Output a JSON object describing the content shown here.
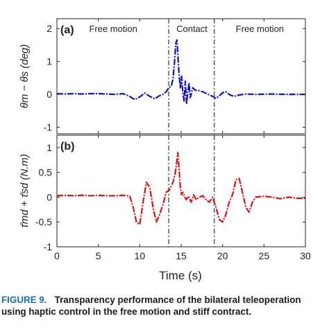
{
  "chart_data": [
    {
      "type": "line",
      "panel_label": "(a)",
      "ylabel": "θm − θs (deg)",
      "xlim": [
        0,
        30
      ],
      "ylim": [
        -1.2,
        2.3
      ],
      "yticks": [
        -1,
        0,
        1,
        2
      ],
      "xticks": [
        0,
        5,
        10,
        15,
        20,
        25,
        30
      ],
      "show_xtick_labels": false,
      "grid": false,
      "line_color": "#1010cc",
      "line_style": "dashdot",
      "phase_lines": [
        13.5,
        19.0
      ],
      "phase_labels": [
        {
          "text": "Free motion",
          "x": 6.8
        },
        {
          "text": "Contact",
          "x": 16.3
        },
        {
          "text": "Free motion",
          "x": 24.5
        }
      ],
      "series": [
        {
          "x": [
            0,
            1,
            2,
            3,
            4,
            5,
            6,
            7,
            8,
            8.7,
            9.4,
            10.0,
            10.6,
            11.2,
            11.8,
            12.3,
            12.8,
            13.2,
            13.5,
            13.8,
            14.0,
            14.2,
            14.35,
            14.5,
            14.6,
            14.75,
            14.9,
            15.05,
            15.2,
            15.35,
            15.5,
            15.65,
            15.8,
            15.95,
            16.1,
            16.25,
            16.4,
            16.6,
            16.8,
            17.0,
            17.3,
            17.6,
            18.0,
            18.4,
            18.8,
            19.2,
            19.6,
            20.0,
            20.4,
            20.9,
            21.4,
            22.0,
            22.8,
            24,
            26,
            28,
            30
          ],
          "y": [
            0.02,
            0.01,
            0.02,
            0.01,
            0.02,
            0.02,
            0.01,
            0.0,
            0.02,
            -0.05,
            -0.16,
            -0.08,
            0.04,
            -0.06,
            -0.14,
            -0.05,
            0.0,
            0.08,
            0.2,
            0.25,
            0.45,
            1.0,
            1.55,
            1.65,
            1.2,
            0.6,
            0.2,
            0.55,
            0.05,
            -0.2,
            0.4,
            -0.3,
            0.05,
            0.35,
            -0.1,
            0.05,
            0.2,
            0.15,
            0.12,
            0.12,
            0.1,
            0.08,
            0.03,
            -0.02,
            -0.06,
            -0.12,
            -0.05,
            0.05,
            0.08,
            -0.02,
            -0.06,
            -0.02,
            0.01,
            0.0,
            0.01,
            0.0,
            0.0
          ]
        }
      ]
    },
    {
      "type": "line",
      "panel_label": "(b)",
      "ylabel": "τ̂md + τ̂sd (N.m)",
      "xlabel": "Time (s)",
      "xlim": [
        0,
        30
      ],
      "ylim": [
        -1,
        1.25
      ],
      "yticks": [
        -1,
        -0.5,
        0,
        0.5,
        1
      ],
      "xticks": [
        0,
        5,
        10,
        15,
        20,
        25,
        30
      ],
      "show_xtick_labels": true,
      "grid": false,
      "line_color": "#e01010",
      "line_style": "dashdot",
      "phase_lines": [
        13.5,
        19.0
      ],
      "series": [
        {
          "x": [
            0,
            1,
            2,
            3,
            4,
            5,
            6,
            7,
            8,
            8.8,
            9.2,
            9.6,
            10.0,
            10.4,
            10.8,
            11.2,
            11.6,
            12.0,
            12.4,
            12.8,
            13.2,
            13.6,
            14.0,
            14.3,
            14.5,
            14.6,
            14.75,
            14.9,
            15.05,
            15.2,
            15.4,
            15.6,
            15.9,
            16.2,
            16.5,
            16.8,
            17.2,
            17.6,
            18.0,
            18.4,
            18.8,
            19.2,
            19.6,
            20.0,
            20.4,
            20.8,
            21.2,
            21.6,
            22.0,
            22.4,
            22.8,
            23.2,
            23.6,
            24,
            25,
            26,
            27,
            28,
            29,
            30
          ],
          "y": [
            0.03,
            0.04,
            0.03,
            0.04,
            0.03,
            0.04,
            0.03,
            0.03,
            0.04,
            0.02,
            -0.2,
            -0.5,
            -0.55,
            -0.1,
            0.3,
            0.2,
            -0.2,
            -0.5,
            -0.35,
            -0.15,
            0.1,
            0.15,
            0.3,
            0.5,
            0.75,
            0.9,
            0.55,
            0.2,
            0.05,
            0.1,
            0.02,
            -0.05,
            0.02,
            -0.1,
            0.05,
            -0.05,
            0.0,
            0.03,
            -0.05,
            -0.1,
            0.0,
            -0.2,
            -0.45,
            -0.5,
            -0.35,
            -0.1,
            0.05,
            0.35,
            0.38,
            0.1,
            -0.2,
            -0.3,
            -0.1,
            0.0,
            0.02,
            0.0,
            -0.03,
            0.0,
            -0.02,
            -0.02
          ]
        }
      ]
    }
  ],
  "caption": {
    "label": "FIGURE 9.",
    "line1": "Transparency performance of the bilateral teleoperation",
    "line2": "using haptic control in the free motion and stiff contract."
  }
}
